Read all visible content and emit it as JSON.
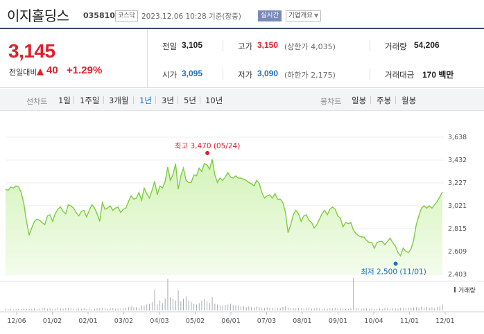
{
  "header": {
    "title": "이지홀딩스",
    "code": "035810",
    "market": "코스닥",
    "datetime": "2023.12.06 10:28 기준(장중)",
    "realtime_label": "실시간",
    "company_info_label": "기업개요"
  },
  "price": {
    "current": "3,145",
    "change_label": "전일대비",
    "change_direction_icon": "up-triangle-icon",
    "change_arrow": "▲",
    "change_value": "40",
    "change_pct": "+1.29%"
  },
  "stats": {
    "prev_close_label": "전일",
    "prev_close": "3,105",
    "high_label": "고가",
    "high": "3,150",
    "upper_limit": "(상한가 4,035)",
    "volume_label": "거래량",
    "volume": "54,206",
    "open_label": "시가",
    "open": "3,095",
    "low_label": "저가",
    "low": "3,090",
    "lower_limit": "(하한가 2,175)",
    "amount_label": "거래대금",
    "amount": "170 백만"
  },
  "period_bar": {
    "line_chart_label": "선차트",
    "line_periods": [
      "1일",
      "1주일",
      "3개월",
      "1년",
      "3년",
      "5년",
      "10년"
    ],
    "active_period": "1년",
    "candle_chart_label": "봉차트",
    "candle_periods": [
      "일봉",
      "주봉",
      "월봉"
    ]
  },
  "colors": {
    "up": "#e0202c",
    "down": "#1b6fc7",
    "line": "#7ccd3f",
    "area_top": "#d4f3b9",
    "area_bottom": "#f3fceb",
    "volume_bar": "#9aa0aa"
  },
  "chart_data": {
    "type": "area",
    "y_ticks": [
      "3,638",
      "3,432",
      "3,227",
      "3,021",
      "2,815",
      "2,609",
      "2,403"
    ],
    "ylim": [
      2403,
      3638
    ],
    "x_tick_labels": [
      "12/06",
      "01/02",
      "02/01",
      "03/02",
      "04/03",
      "05/02",
      "06/01",
      "07/03",
      "08/01",
      "09/01",
      "10/04",
      "11/01",
      "12/01"
    ],
    "high_annotation": "최고 3,470 (05/24)",
    "low_annotation": "최저 2,500 (11/01)",
    "high_point": {
      "x": 0.462,
      "y": 3470
    },
    "low_point": {
      "x": 0.893,
      "y": 2500
    },
    "volume_label": "거래량",
    "series": [
      {
        "values": [
          3170,
          3160,
          3190,
          3180,
          3200,
          3190,
          3140,
          3040,
          2880,
          2760,
          2820,
          2880,
          2900,
          2890,
          2870,
          2850,
          2930,
          2940,
          2880,
          2950,
          2990,
          3010,
          2970,
          2950,
          3030,
          3020,
          3000,
          2960,
          2930,
          2970,
          2980,
          2920,
          2980,
          3030,
          3000,
          2950,
          2880,
          3050,
          2990,
          3000,
          3020,
          2980,
          3000,
          3010,
          2960,
          2990,
          3000,
          3060,
          3110,
          3080,
          3090,
          3140,
          3070,
          3180,
          3130,
          3090,
          3160,
          3240,
          3120,
          3200,
          3180,
          3240,
          3370,
          3250,
          3300,
          3400,
          3170,
          3290,
          3360,
          3250,
          3230,
          3230,
          3300,
          3290,
          3360,
          3330,
          3400,
          3390,
          3350,
          3440,
          3300,
          3230,
          3270,
          3250,
          3280,
          3320,
          3280,
          3270,
          3290,
          3270,
          3270,
          3260,
          3250,
          3230,
          3220,
          3200,
          3250,
          3220,
          3140,
          3090,
          3110,
          3120,
          3090,
          3130,
          3080,
          3080,
          3050,
          2960,
          2780,
          2850,
          2940,
          2980,
          2950,
          2880,
          2930,
          2940,
          2890,
          2870,
          2820,
          2850,
          2900,
          2950,
          2980,
          2940,
          2990,
          3010,
          2990,
          2930,
          2910,
          2830,
          2870,
          2860,
          2870,
          2800,
          2770,
          2750,
          2740,
          2740,
          2710,
          2690,
          2690,
          2640,
          2690,
          2700,
          2700,
          2670,
          2700,
          2730,
          2690,
          2660,
          2600,
          2570,
          2640,
          2610,
          2600,
          2630,
          2710,
          2850,
          2930,
          3000,
          3020,
          3000,
          3020,
          3000,
          3030,
          3060,
          3100,
          3145
        ]
      }
    ],
    "volume": [
      0.05,
      0.04,
      0.05,
      0.03,
      0.04,
      0.05,
      0.04,
      0.06,
      0.05,
      0.05,
      0.04,
      0.06,
      0.04,
      0.05,
      0.07,
      0.08,
      0.05,
      0.06,
      0.04,
      0.05,
      0.09,
      0.06,
      0.05,
      0.07,
      0.08,
      0.06,
      0.05,
      0.04,
      0.06,
      0.05,
      0.07,
      0.05,
      0.06,
      0.04,
      0.05,
      0.06,
      0.07,
      0.08,
      0.06,
      0.05,
      0.06,
      0.07,
      0.05,
      0.06,
      0.05,
      0.06,
      0.08,
      0.1,
      0.12,
      0.09,
      0.1,
      0.08,
      0.15,
      0.13,
      0.18,
      0.2,
      0.25,
      0.62,
      0.18,
      0.3,
      0.22,
      0.35,
      0.95,
      0.4,
      0.35,
      0.3,
      0.6,
      0.28,
      0.35,
      0.42,
      0.3,
      0.25,
      0.2,
      0.18,
      0.22,
      0.3,
      0.35,
      0.28,
      0.22,
      0.4,
      0.2,
      0.18,
      0.15,
      0.14,
      0.16,
      0.18,
      0.2,
      0.16,
      0.15,
      0.14,
      0.12,
      0.13,
      0.1,
      0.12,
      0.1,
      0.09,
      0.12,
      0.1,
      0.08,
      0.07,
      0.09,
      0.08,
      0.07,
      0.06,
      0.07,
      0.08,
      0.1,
      0.12,
      0.09,
      0.08,
      0.07,
      0.06,
      0.07,
      0.06,
      0.05,
      0.06,
      0.07,
      0.05,
      0.06,
      0.07,
      0.06,
      0.05,
      0.06,
      0.05,
      0.07,
      0.06,
      0.08,
      0.05,
      0.06,
      0.05,
      0.04,
      0.05,
      0.06,
      0.98,
      0.08,
      0.06,
      0.05,
      0.06,
      0.07,
      0.05,
      0.06,
      0.05,
      0.04,
      0.06,
      0.05,
      0.07,
      0.06,
      0.05,
      0.07,
      0.06,
      0.05,
      0.08,
      0.07,
      0.06,
      0.07,
      0.08,
      0.09,
      0.1,
      0.08,
      0.12,
      0.09,
      0.1,
      0.08,
      0.09,
      0.07,
      0.1,
      0.12,
      0.18
    ]
  }
}
